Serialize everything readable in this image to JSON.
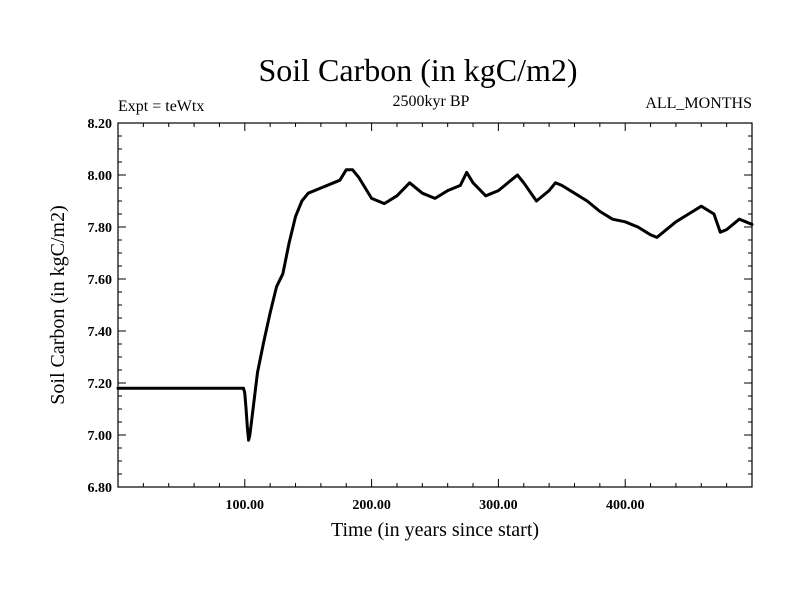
{
  "chart_data": {
    "type": "line",
    "title": "Soil Carbon (in kgC/m2)",
    "left_note": "Expt = teWtx",
    "center_note": "2500kyr BP",
    "right_note": "ALL_MONTHS",
    "xlabel": "Time (in years since start)",
    "ylabel": "Soil Carbon (in kgC/m2)",
    "xlim": [
      0,
      500
    ],
    "ylim": [
      6.8,
      8.2
    ],
    "x_ticks": [
      100,
      200,
      300,
      400
    ],
    "x_tick_labels": [
      "100.00",
      "200.00",
      "300.00",
      "400.00"
    ],
    "y_ticks": [
      6.8,
      7.0,
      7.2,
      7.4,
      7.6,
      7.8,
      8.0,
      8.2
    ],
    "y_tick_labels": [
      "6.80",
      "7.00",
      "7.20",
      "7.40",
      "7.60",
      "7.80",
      "8.00",
      "8.20"
    ],
    "grid": false,
    "line_color": "#000000",
    "series": [
      {
        "name": "Soil Carbon",
        "x": [
          0,
          99,
          100,
          101,
          102,
          103,
          104,
          106,
          108,
          110,
          115,
          120,
          125,
          130,
          135,
          140,
          145,
          150,
          160,
          170,
          175,
          180,
          185,
          190,
          200,
          210,
          220,
          230,
          240,
          250,
          260,
          270,
          275,
          280,
          290,
          300,
          310,
          315,
          320,
          330,
          340,
          345,
          350,
          360,
          370,
          380,
          390,
          400,
          410,
          420,
          425,
          430,
          440,
          450,
          460,
          470,
          475,
          480,
          490,
          500
        ],
        "y": [
          7.18,
          7.18,
          7.16,
          7.1,
          7.03,
          6.98,
          7.0,
          7.08,
          7.16,
          7.24,
          7.36,
          7.47,
          7.57,
          7.62,
          7.74,
          7.84,
          7.9,
          7.93,
          7.95,
          7.97,
          7.98,
          8.02,
          8.02,
          7.99,
          7.91,
          7.89,
          7.92,
          7.97,
          7.93,
          7.91,
          7.94,
          7.96,
          8.01,
          7.97,
          7.92,
          7.94,
          7.98,
          8.0,
          7.97,
          7.9,
          7.94,
          7.97,
          7.96,
          7.93,
          7.9,
          7.86,
          7.83,
          7.82,
          7.8,
          7.77,
          7.76,
          7.78,
          7.82,
          7.85,
          7.88,
          7.85,
          7.78,
          7.79,
          7.83,
          7.81
        ]
      }
    ]
  }
}
